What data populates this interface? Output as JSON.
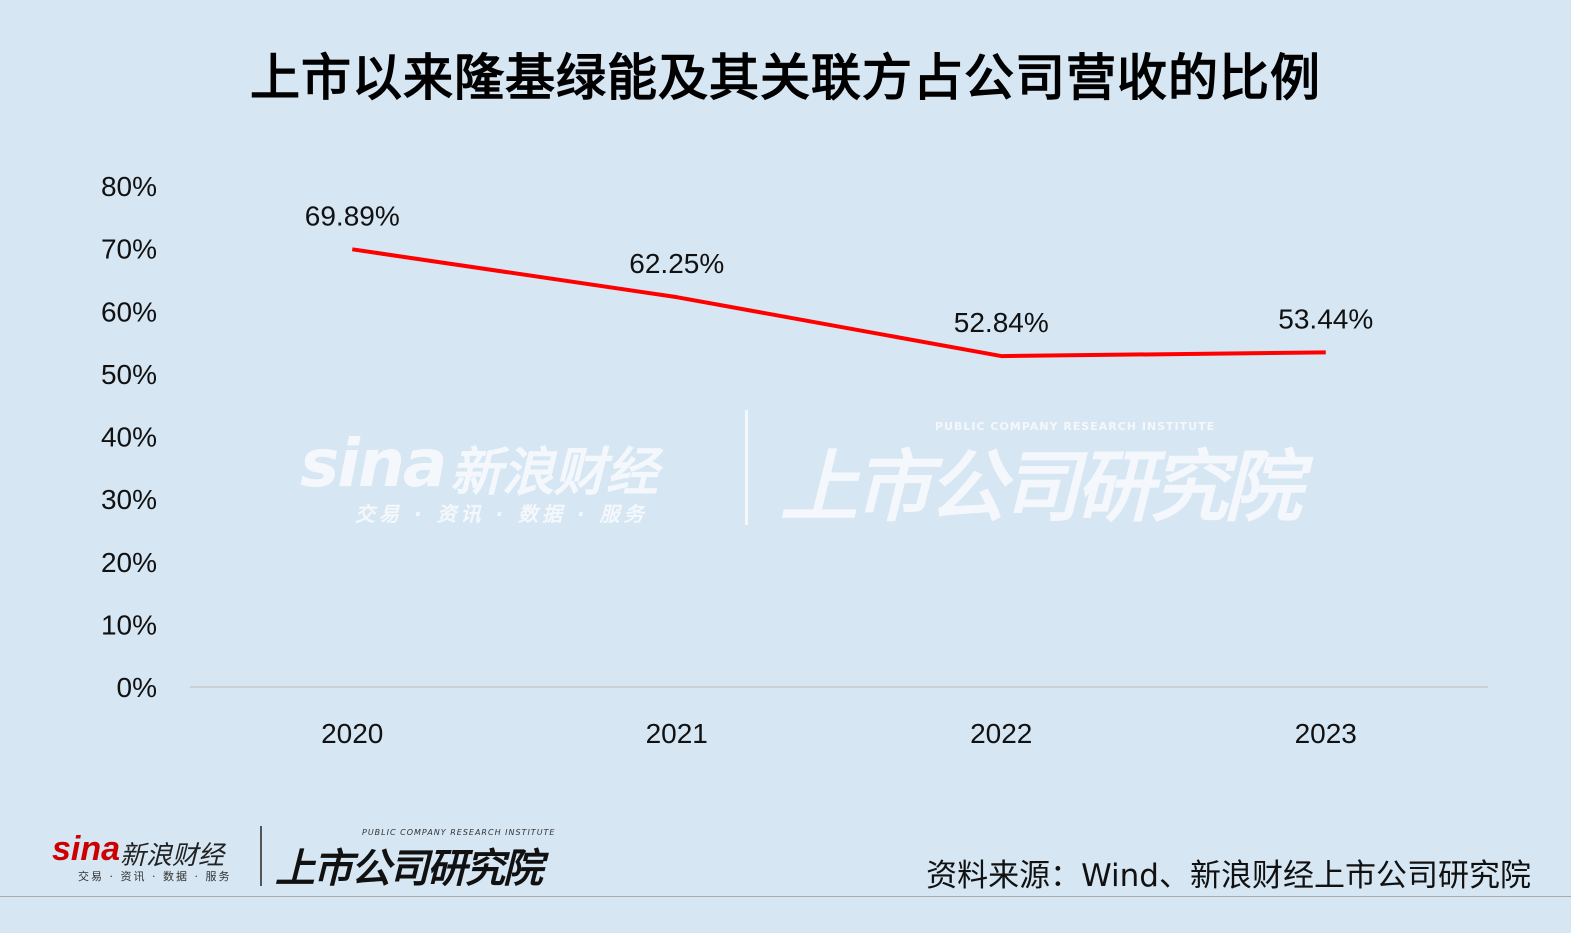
{
  "title": "上市以来隆基绿能及其关联方占公司营收的比例",
  "source": "资料来源：Wind、新浪财经上市公司研究院",
  "watermark": {
    "sina": "sina",
    "sina_cn": "新浪财经",
    "sina_sub": "交易 · 资讯 · 数据 · 服务",
    "institute": "上市公司研究院",
    "institute_en": "PUBLIC COMPANY RESEARCH INSTITUTE"
  },
  "footer_logo": {
    "sina": "sina",
    "sina_cn": "新浪财经",
    "sina_sub": "交易 · 资讯 · 数据 · 服务",
    "institute": "上市公司研究院",
    "institute_en": "PUBLIC COMPANY RESEARCH INSTITUTE"
  },
  "colors": {
    "background": "#d6e6f3",
    "line": "#ff0000"
  },
  "chart_data": {
    "type": "line",
    "title": "上市以来隆基绿能及其关联方占公司营收的比例",
    "categories": [
      "2020",
      "2021",
      "2022",
      "2023"
    ],
    "series": [
      {
        "values": [
          69.89,
          62.25,
          52.84,
          53.44
        ]
      }
    ],
    "data_labels": [
      "69.89%",
      "62.25%",
      "52.84%",
      "53.44%"
    ],
    "ylim": [
      0,
      80
    ],
    "yticks": [
      0,
      10,
      20,
      30,
      40,
      50,
      60,
      70,
      80
    ],
    "ytick_labels": [
      "0%",
      "10%",
      "20%",
      "30%",
      "40%",
      "50%",
      "60%",
      "70%",
      "80%"
    ],
    "grid": false,
    "legend": "none"
  }
}
